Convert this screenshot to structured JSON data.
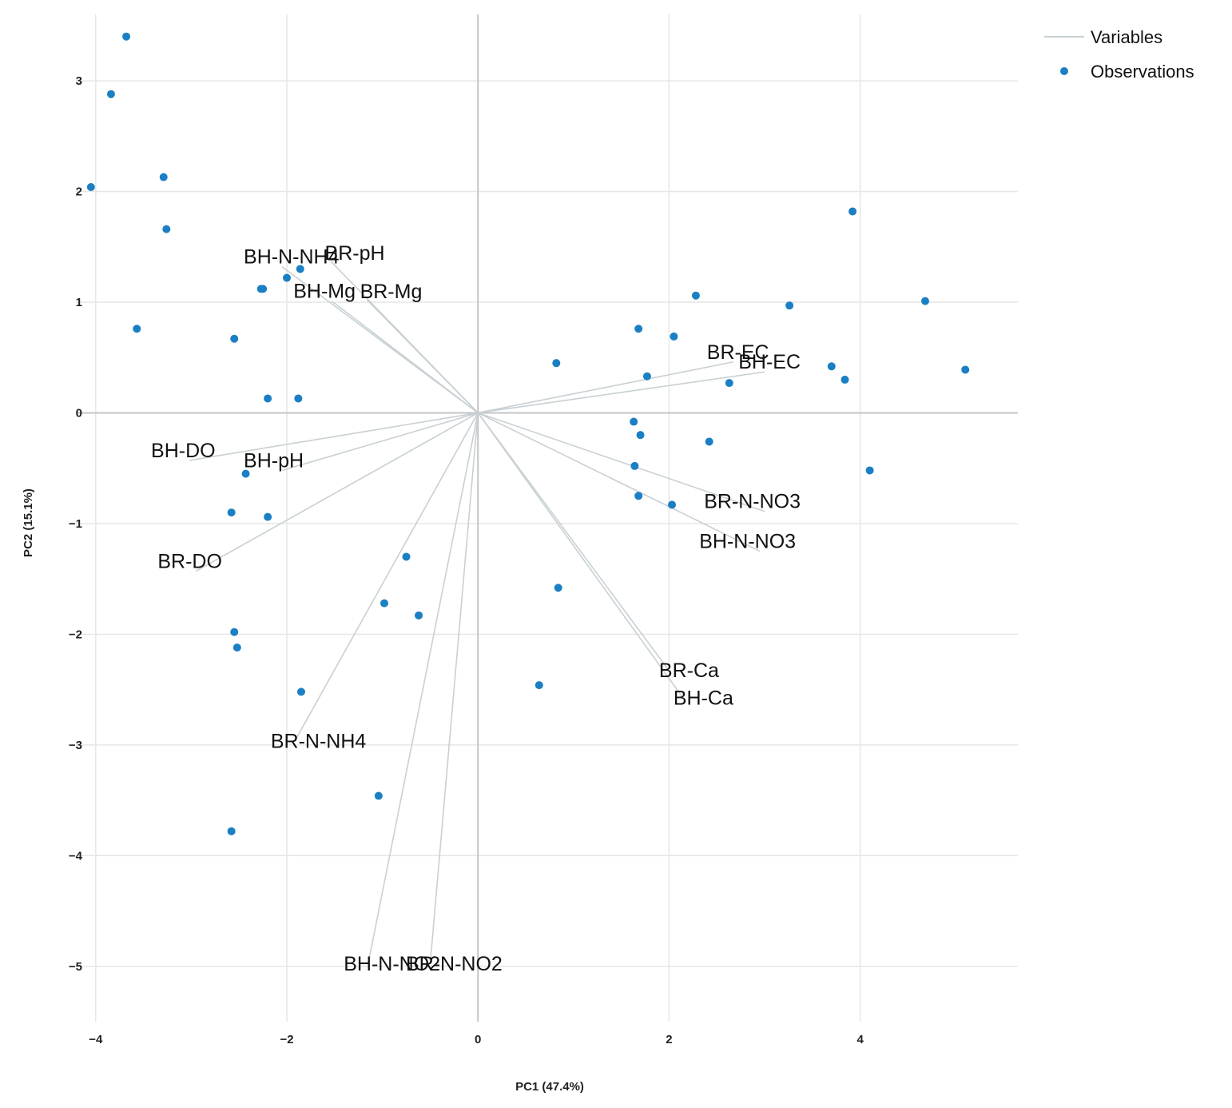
{
  "chart_data": {
    "type": "scatter",
    "subtype": "pca-biplot",
    "title": "",
    "xlabel": "PC1 (47.4%)",
    "ylabel": "PC2 (15.1%)",
    "xlim": [
      -4.5,
      5.65
    ],
    "ylim": [
      -5.5,
      3.6
    ],
    "xticks": [
      -4,
      -2,
      0,
      2,
      4
    ],
    "yticks": [
      -5,
      -4,
      -3,
      -2,
      -1,
      0,
      1,
      2,
      3
    ],
    "xtick_labels": [
      "−4",
      "−2",
      "0",
      "2",
      "4"
    ],
    "ytick_labels": [
      "−5",
      "−4",
      "−3",
      "−2",
      "−1",
      "0",
      "1",
      "2",
      "3"
    ],
    "grid": true,
    "legend": {
      "position": "top-right",
      "entries": [
        {
          "label": "Variables",
          "kind": "line",
          "color": "#c8d0d4"
        },
        {
          "label": "Observations",
          "kind": "point",
          "color": "#1b7fc4"
        }
      ]
    },
    "colors": {
      "variables": "#c8d0d4",
      "observations": "#1b7fc4",
      "grid": "#e6e6e6",
      "zero_axis": "#c4c4c4"
    },
    "variables": [
      {
        "name": "BR-pH",
        "x": -1.54,
        "y": 1.37
      },
      {
        "name": "BH-N-NH4",
        "x": -2.05,
        "y": 1.32
      },
      {
        "name": "BR-Mg",
        "x": -1.16,
        "y": 1.02
      },
      {
        "name": "BH-Mg",
        "x": -1.53,
        "y": 1.01
      },
      {
        "name": "BR-EC",
        "x": 2.67,
        "y": 0.46
      },
      {
        "name": "BH-EC",
        "x": 3.0,
        "y": 0.37
      },
      {
        "name": "BH-DO",
        "x": -3.02,
        "y": -0.43
      },
      {
        "name": "BH-pH",
        "x": -2.05,
        "y": -0.52
      },
      {
        "name": "BR-DO",
        "x": -2.95,
        "y": -1.43
      },
      {
        "name": "BR-N-NO3",
        "x": 3.0,
        "y": -0.89
      },
      {
        "name": "BH-N-NO3",
        "x": 2.95,
        "y": -1.25
      },
      {
        "name": "BR-Ca",
        "x": 2.0,
        "y": -2.33
      },
      {
        "name": "BH-Ca",
        "x": 2.15,
        "y": -2.58
      },
      {
        "name": "BR-N-NH4",
        "x": -1.92,
        "y": -2.97
      },
      {
        "name": "BH-N-NO2",
        "x": -1.15,
        "y": -4.98
      },
      {
        "name": "BR-N-NO2",
        "x": -0.5,
        "y": -4.98
      }
    ],
    "observations": [
      {
        "x": -3.68,
        "y": 3.4
      },
      {
        "x": -3.84,
        "y": 2.88
      },
      {
        "x": -4.05,
        "y": 2.04
      },
      {
        "x": -3.29,
        "y": 2.13
      },
      {
        "x": -3.26,
        "y": 1.66
      },
      {
        "x": -2.27,
        "y": 1.12
      },
      {
        "x": -2.25,
        "y": 1.12
      },
      {
        "x": -2.0,
        "y": 1.22
      },
      {
        "x": -1.86,
        "y": 1.3
      },
      {
        "x": -3.57,
        "y": 0.76
      },
      {
        "x": -2.55,
        "y": 0.67
      },
      {
        "x": -2.2,
        "y": 0.13
      },
      {
        "x": -1.88,
        "y": 0.13
      },
      {
        "x": -2.43,
        "y": -0.55
      },
      {
        "x": -2.58,
        "y": -0.9
      },
      {
        "x": -2.2,
        "y": -0.94
      },
      {
        "x": -0.75,
        "y": -1.3
      },
      {
        "x": -0.98,
        "y": -1.72
      },
      {
        "x": -0.62,
        "y": -1.83
      },
      {
        "x": -2.55,
        "y": -1.98
      },
      {
        "x": -2.52,
        "y": -2.12
      },
      {
        "x": -1.85,
        "y": -2.52
      },
      {
        "x": -1.04,
        "y": -3.46
      },
      {
        "x": -2.58,
        "y": -3.78
      },
      {
        "x": 0.82,
        "y": 0.45
      },
      {
        "x": 1.68,
        "y": 0.76
      },
      {
        "x": 2.05,
        "y": 0.69
      },
      {
        "x": 2.28,
        "y": 1.06
      },
      {
        "x": 1.77,
        "y": 0.33
      },
      {
        "x": 2.63,
        "y": 0.27
      },
      {
        "x": 3.26,
        "y": 0.97
      },
      {
        "x": 3.7,
        "y": 0.42
      },
      {
        "x": 3.84,
        "y": 0.3
      },
      {
        "x": 3.92,
        "y": 1.82
      },
      {
        "x": 4.68,
        "y": 1.01
      },
      {
        "x": 5.1,
        "y": 0.39
      },
      {
        "x": 1.63,
        "y": -0.08
      },
      {
        "x": 1.7,
        "y": -0.2
      },
      {
        "x": 2.42,
        "y": -0.26
      },
      {
        "x": 1.64,
        "y": -0.48
      },
      {
        "x": 1.68,
        "y": -0.75
      },
      {
        "x": 2.03,
        "y": -0.83
      },
      {
        "x": 4.1,
        "y": -0.52
      },
      {
        "x": 0.84,
        "y": -1.58
      },
      {
        "x": 0.64,
        "y": -2.46
      }
    ]
  }
}
